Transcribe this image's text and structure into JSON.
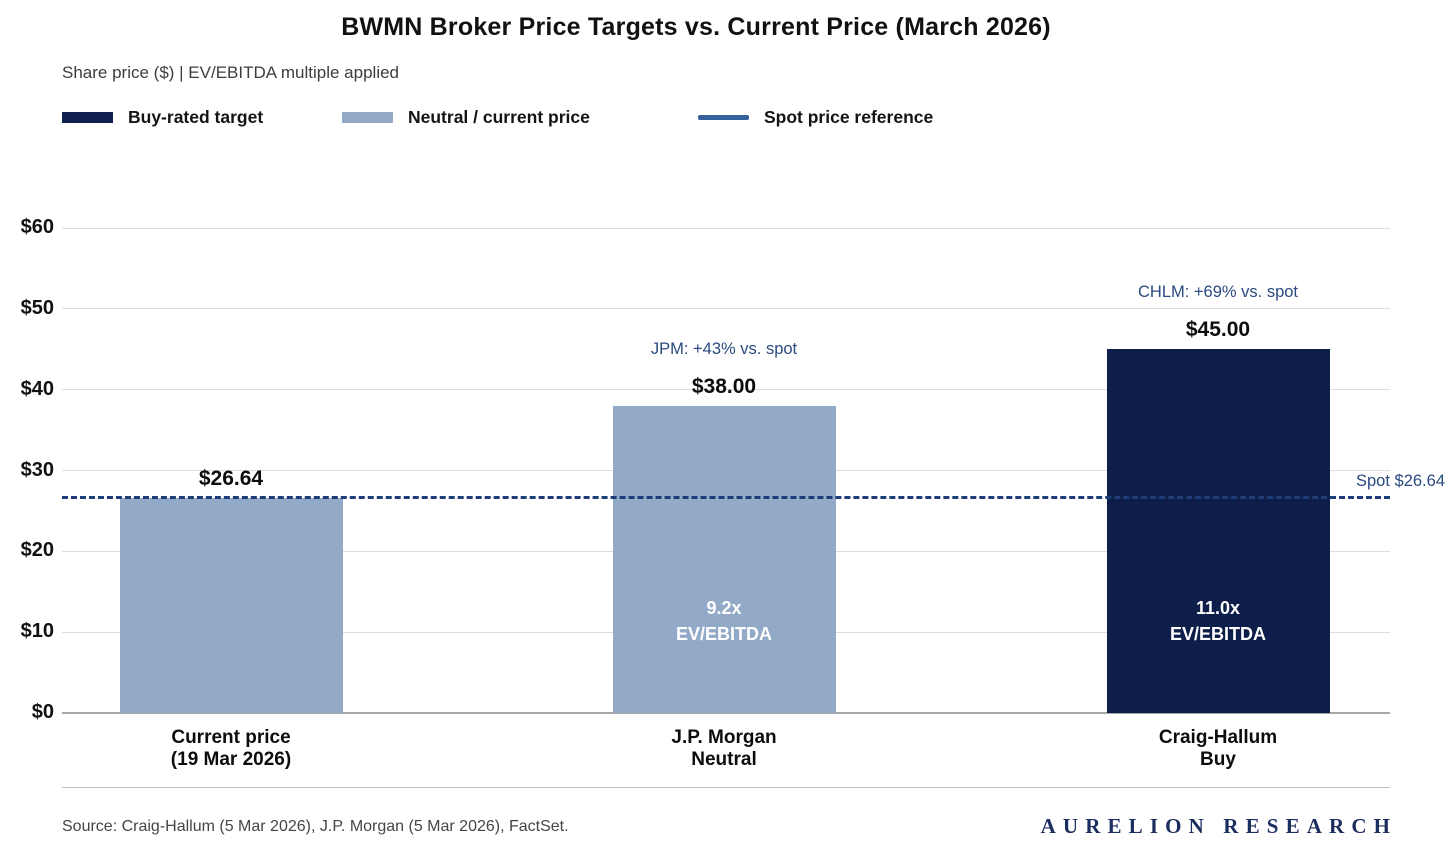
{
  "header": {
    "title": "BWMN Broker Price Targets vs. Current Price (March 2026)",
    "subtitle": "Share price ($) | EV/EBITDA multiple applied"
  },
  "legend": [
    {
      "label": "Buy-rated target",
      "swatch": "bar",
      "color": "#10204e"
    },
    {
      "label": "Neutral / current price",
      "swatch": "bar",
      "color": "#92a9c8"
    },
    {
      "label": "Spot price reference",
      "swatch": "line",
      "color": "#35619c"
    }
  ],
  "chart_data": {
    "type": "bar",
    "title": "BWMN Broker Price Targets vs. Current Price (March 2026)",
    "subtitle": "Share price ($) | EV/EBITDA multiple applied",
    "categories": [
      [
        "Current price",
        "(19 Mar 2026)"
      ],
      [
        "J.P. Morgan",
        "Neutral"
      ],
      [
        "Craig-Hallum",
        "Buy"
      ]
    ],
    "values": [
      26.64,
      38.0,
      45.0
    ],
    "value_labels": [
      "$26.64",
      "$38.00",
      "$45.00"
    ],
    "bar_colors": [
      "#92a9c8",
      "#92a9c8",
      "#0e1e4b"
    ],
    "bar_ratings": [
      "current",
      "neutral",
      "buy"
    ],
    "bar_annotations": [
      "",
      "JPM: +43% vs. spot",
      "CHLM: +69% vs. spot"
    ],
    "inbar_labels": [
      null,
      [
        "9.2x",
        "EV/EBITDA"
      ],
      [
        "11.0x",
        "EV/EBITDA"
      ]
    ],
    "ylabel": "Share price ($)",
    "ylim": [
      0,
      60
    ],
    "ytick_labels": [
      "$0",
      "$10",
      "$20",
      "$30",
      "$40",
      "$50",
      "$60"
    ],
    "ytick_values": [
      0,
      10,
      20,
      30,
      40,
      50,
      60
    ],
    "grid": true,
    "legend_position": "top-left",
    "reference_line": {
      "value": 26.64,
      "label": "Spot $26.64",
      "style": "dashed",
      "color": "#1e3c78"
    }
  },
  "footer": {
    "source": "Source: Craig-Hallum (5 Mar 2026), J.P. Morgan (5 Mar 2026), FactSet.",
    "brand": "AURELION RESEARCH"
  }
}
